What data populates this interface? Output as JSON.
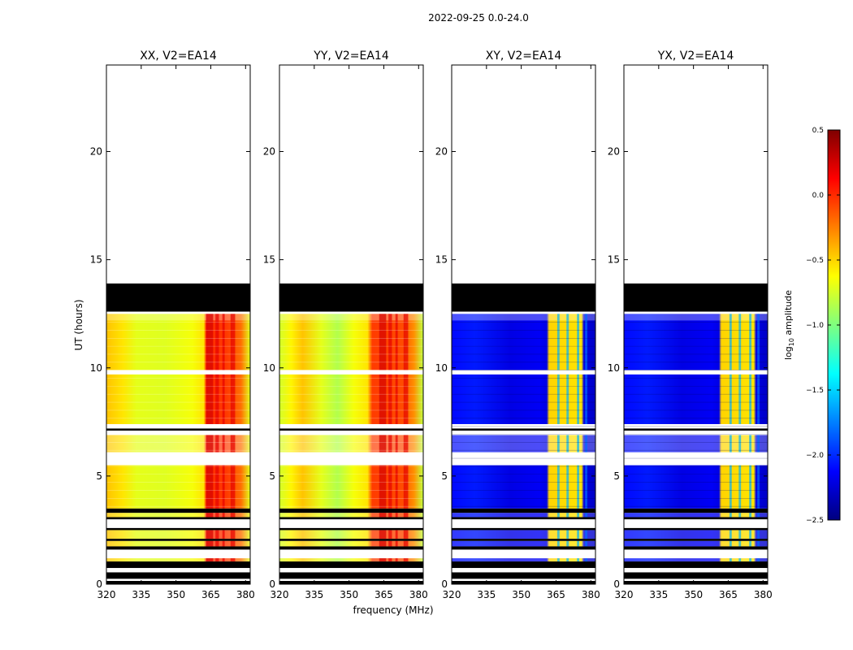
{
  "figure_title": "2022-09-25 0.0-24.0",
  "colors": {
    "jet": [
      "#00007f",
      "#0000ff",
      "#007fff",
      "#00ffff",
      "#7fff7f",
      "#ffff00",
      "#ff7f00",
      "#ff0000",
      "#7f0000"
    ],
    "flag": "#000000",
    "gap": "#ffffff"
  },
  "chart_data": {
    "type": "heatmap",
    "xlabel": "frequency (MHz)",
    "ylabel": "UT (hours)",
    "xlim": [
      320,
      382
    ],
    "ylim": [
      0,
      24
    ],
    "xticks": [
      320,
      335,
      350,
      365,
      380
    ],
    "yticks": [
      0,
      5,
      10,
      15,
      20
    ],
    "colorbar": {
      "label": "log10 amplitude",
      "label_base": "log",
      "label_sub": "10",
      "label_rest": " amplitude",
      "range": [
        -2.5,
        0.5
      ],
      "ticks": [
        "0.5",
        "0.0",
        "−0.5",
        "−1.0",
        "−1.5",
        "−2.0",
        "−2.5"
      ],
      "tick_values": [
        0.5,
        0.0,
        -0.5,
        -1.0,
        -1.5,
        -2.0,
        -2.5
      ]
    },
    "no_data_above_hours": 13.9,
    "time_bands": [
      {
        "from": 0.0,
        "to": 0.15,
        "kind": "flag"
      },
      {
        "from": 0.15,
        "to": 0.25,
        "kind": "gap"
      },
      {
        "from": 0.25,
        "to": 0.55,
        "kind": "flag"
      },
      {
        "from": 0.55,
        "to": 0.75,
        "kind": "gap"
      },
      {
        "from": 0.75,
        "to": 1.05,
        "kind": "flag"
      },
      {
        "from": 1.05,
        "to": 1.2,
        "kind": "data",
        "level": 0.75
      },
      {
        "from": 1.2,
        "to": 1.6,
        "kind": "gap"
      },
      {
        "from": 1.6,
        "to": 1.75,
        "kind": "flag"
      },
      {
        "from": 1.75,
        "to": 2.0,
        "kind": "data",
        "level": 0.8
      },
      {
        "from": 2.0,
        "to": 2.1,
        "kind": "flag"
      },
      {
        "from": 2.1,
        "to": 2.5,
        "kind": "data",
        "level": 0.8
      },
      {
        "from": 2.5,
        "to": 2.6,
        "kind": "flag"
      },
      {
        "from": 2.6,
        "to": 3.0,
        "kind": "gap"
      },
      {
        "from": 3.0,
        "to": 3.1,
        "kind": "flag"
      },
      {
        "from": 3.1,
        "to": 3.3,
        "kind": "data",
        "level": 0.8
      },
      {
        "from": 3.3,
        "to": 3.5,
        "kind": "flag"
      },
      {
        "from": 3.5,
        "to": 5.5,
        "kind": "data",
        "level": 1.0
      },
      {
        "from": 5.5,
        "to": 6.1,
        "kind": "gap"
      },
      {
        "from": 6.1,
        "to": 6.9,
        "kind": "data",
        "level": 0.7
      },
      {
        "from": 6.9,
        "to": 7.1,
        "kind": "gap"
      },
      {
        "from": 7.1,
        "to": 7.2,
        "kind": "flag"
      },
      {
        "from": 7.2,
        "to": 7.4,
        "kind": "gap"
      },
      {
        "from": 7.4,
        "to": 9.7,
        "kind": "data",
        "level": 1.0
      },
      {
        "from": 9.7,
        "to": 9.9,
        "kind": "gap"
      },
      {
        "from": 9.9,
        "to": 12.2,
        "kind": "data",
        "level": 1.0
      },
      {
        "from": 12.2,
        "to": 12.5,
        "kind": "data",
        "level": 0.7
      },
      {
        "from": 12.5,
        "to": 12.6,
        "kind": "gap"
      },
      {
        "from": 12.6,
        "to": 13.9,
        "kind": "flag"
      }
    ],
    "panels": [
      {
        "title": "XX, V2=EA14",
        "pol": "parallel",
        "rfi_level": 0.0,
        "freq_profile": [
          {
            "f": 320,
            "v": -0.45
          },
          {
            "f": 327,
            "v": -0.55
          },
          {
            "f": 333,
            "v": -0.7
          },
          {
            "f": 345,
            "v": -0.72
          },
          {
            "f": 357,
            "v": -0.65
          },
          {
            "f": 362,
            "v": -0.55
          },
          {
            "f": 363,
            "v": 0.0
          },
          {
            "f": 372,
            "v": -0.05
          },
          {
            "f": 378,
            "v": -0.2
          },
          {
            "f": 382,
            "v": -0.7
          }
        ]
      },
      {
        "title": "YY, V2=EA14",
        "pol": "parallel",
        "rfi_level": 0.0,
        "freq_profile": [
          {
            "f": 320,
            "v": -0.75
          },
          {
            "f": 325,
            "v": -0.6
          },
          {
            "f": 330,
            "v": -0.45
          },
          {
            "f": 338,
            "v": -0.7
          },
          {
            "f": 345,
            "v": -0.85
          },
          {
            "f": 352,
            "v": -0.65
          },
          {
            "f": 358,
            "v": -0.55
          },
          {
            "f": 360,
            "v": -0.05
          },
          {
            "f": 373,
            "v": -0.1
          },
          {
            "f": 378,
            "v": -0.3
          },
          {
            "f": 382,
            "v": -0.8
          }
        ]
      },
      {
        "title": "XY, V2=EA14",
        "pol": "cross",
        "rfi_level": -0.3,
        "freq_profile": [
          {
            "f": 320,
            "v": -2.1
          },
          {
            "f": 330,
            "v": -2.05
          },
          {
            "f": 345,
            "v": -2.2
          },
          {
            "f": 358,
            "v": -2.15
          },
          {
            "f": 361,
            "v": -2.2
          },
          {
            "f": 362,
            "v": -0.5
          },
          {
            "f": 376,
            "v": -0.55
          },
          {
            "f": 377,
            "v": -2.2
          },
          {
            "f": 382,
            "v": -2.3
          }
        ]
      },
      {
        "title": "YX, V2=EA14",
        "pol": "cross",
        "rfi_level": -0.3,
        "freq_profile": [
          {
            "f": 320,
            "v": -2.1
          },
          {
            "f": 330,
            "v": -2.05
          },
          {
            "f": 345,
            "v": -2.2
          },
          {
            "f": 358,
            "v": -2.15
          },
          {
            "f": 361,
            "v": -2.2
          },
          {
            "f": 362,
            "v": -0.5
          },
          {
            "f": 376,
            "v": -0.55
          },
          {
            "f": 377,
            "v": -2.2
          },
          {
            "f": 382,
            "v": -2.3
          }
        ]
      }
    ]
  }
}
